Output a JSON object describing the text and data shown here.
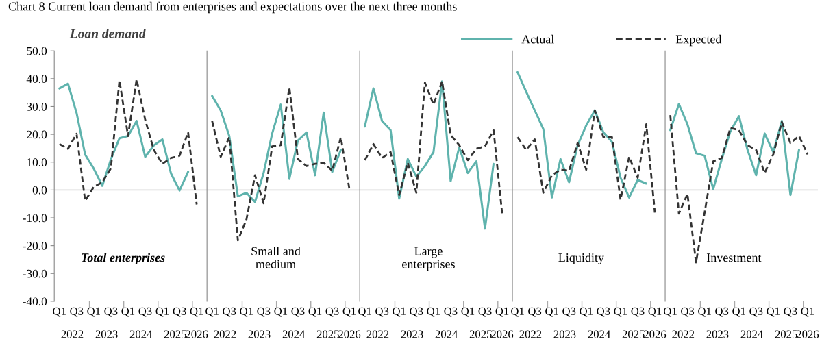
{
  "chart_data": [
    {
      "type": "line",
      "title": "Loan demand",
      "subtitle": "Total enterprises",
      "annotations": [
        "Chart 8 Current loan demand from enterprises and expectations over the next three months",
        "2022",
        "2023",
        "2024",
        "2025",
        "2026"
      ],
      "categories": [
        "Q1",
        null,
        "Q3",
        null,
        "Q1",
        null,
        "Q3",
        null,
        "Q1",
        null,
        "Q3",
        null,
        "Q1",
        null,
        "Q3",
        null,
        "Q1"
      ],
      "series": [
        {
          "name": "Actual",
          "color": "#5fb3ad",
          "line_style": "solid",
          "values": [
            36.5,
            38.2,
            27.7,
            12.7,
            7.7,
            1.5,
            11,
            18.6,
            19.4,
            24.8,
            11.9,
            16,
            18.2,
            6,
            -0.2,
            6.5,
            null
          ]
        },
        {
          "name": "Expected",
          "color": "#333333",
          "line_style": "dashed",
          "values": [
            16.5,
            14.8,
            20.2,
            -3.9,
            1.1,
            2.8,
            7.8,
            39.4,
            19.4,
            39.8,
            25.2,
            14.4,
            9.4,
            11.5,
            12.3,
            20.7,
            -5.2
          ]
        }
      ],
      "ylim": [
        -40,
        50
      ],
      "yticks": [
        {
          "value": -40,
          "label": "-40.0"
        },
        {
          "value": -30,
          "label": "-30.0"
        },
        {
          "value": -20,
          "label": "-20.0"
        },
        {
          "value": -10,
          "label": "-10.0"
        },
        {
          "value": 0,
          "label": "0.0"
        },
        {
          "value": 10,
          "label": "10.0"
        },
        {
          "value": 20,
          "label": "20.0"
        },
        {
          "value": 30,
          "label": "30.0"
        },
        {
          "value": 40,
          "label": "40.0"
        },
        {
          "value": 50,
          "label": "50.0"
        }
      ],
      "ref_lines": [
        {
          "axis": "y",
          "value": 0,
          "color": "#d9d9d9"
        }
      ],
      "legend": "top",
      "grid": false,
      "marker": "none"
    },
    {
      "type": "line",
      "subtitle": "Small and\nmedium",
      "annotations": [
        "2022",
        "2023",
        "2024",
        "2025",
        "2026"
      ],
      "categories": [
        "Q1",
        null,
        "Q3",
        null,
        "Q1",
        null,
        "Q3",
        null,
        "Q1",
        null,
        "Q3",
        null,
        "Q1",
        null,
        "Q3",
        null,
        "Q1"
      ],
      "series": [
        {
          "color": "#5fb3ad",
          "line_style": "solid",
          "values": [
            33.8,
            28.6,
            19.4,
            -2.3,
            -1,
            -4.3,
            6.1,
            20.3,
            30.7,
            4,
            17.8,
            20.7,
            5.3,
            27.8,
            6.5,
            14.4,
            null
          ]
        },
        {
          "color": "#333333",
          "line_style": "dashed",
          "values": [
            24.8,
            11.9,
            19,
            -18.1,
            -10.6,
            5.3,
            -4.8,
            15.7,
            16.1,
            36.9,
            11.1,
            8.6,
            9.4,
            9.8,
            6.9,
            19,
            0.3
          ]
        }
      ],
      "ylim": [
        -40,
        50
      ],
      "tick_labels": "x",
      "ref_lines": [
        {
          "axis": "y",
          "value": 0,
          "color": "#d9d9d9"
        }
      ],
      "grid": false,
      "marker": "none"
    },
    {
      "type": "line",
      "subtitle": "Large\nenterprises",
      "annotations": [
        "2022",
        "2023",
        "2024",
        "2025",
        "2026"
      ],
      "categories": [
        "Q1",
        null,
        "Q3",
        null,
        "Q1",
        null,
        "Q3",
        null,
        "Q1",
        null,
        "Q3",
        null,
        "Q1",
        null,
        "Q3",
        null,
        "Q1"
      ],
      "series": [
        {
          "color": "#5fb3ad",
          "line_style": "solid",
          "values": [
            22.8,
            36.5,
            24.8,
            21.5,
            -3.1,
            11.1,
            4.8,
            8.6,
            13.6,
            39,
            3.2,
            15.3,
            6.1,
            10.3,
            -13.9,
            9.4,
            null
          ]
        },
        {
          "color": "#333333",
          "line_style": "dashed",
          "values": [
            10.7,
            16.5,
            11.5,
            13.6,
            -1.8,
            9.8,
            -1,
            38.6,
            30.7,
            39,
            19.8,
            16.1,
            10.7,
            14.8,
            15.7,
            21.5,
            -8.5
          ]
        }
      ],
      "ylim": [
        -40,
        50
      ],
      "tick_labels": "x",
      "ref_lines": [
        {
          "axis": "y",
          "value": 0,
          "color": "#d9d9d9"
        }
      ],
      "grid": false,
      "marker": "none"
    },
    {
      "type": "line",
      "subtitle": "Liquidity",
      "annotations": [
        "2022",
        "2023",
        "2024",
        "2025",
        "2026"
      ],
      "categories": [
        "Q1",
        null,
        "Q3",
        null,
        "Q1",
        null,
        "Q3",
        null,
        "Q1",
        null,
        "Q3",
        null,
        "Q1",
        null,
        "Q3",
        null,
        "Q1"
      ],
      "series": [
        {
          "color": "#5fb3ad",
          "line_style": "solid",
          "values": [
            42.3,
            35.3,
            28.6,
            21.9,
            -2.7,
            11.1,
            2.8,
            16.1,
            23.2,
            28.6,
            20.7,
            17.3,
            4.4,
            -2.7,
            3.6,
            2.3,
            null
          ]
        },
        {
          "color": "#333333",
          "line_style": "dashed",
          "values": [
            19,
            14.4,
            18.2,
            -1,
            5.3,
            7.3,
            6.9,
            16.9,
            7.3,
            28.6,
            19,
            19,
            -3.5,
            11.9,
            4.4,
            23.6,
            -8.1
          ]
        }
      ],
      "ylim": [
        -40,
        50
      ],
      "tick_labels": "x",
      "ref_lines": [
        {
          "axis": "y",
          "value": 0,
          "color": "#d9d9d9"
        }
      ],
      "grid": false,
      "marker": "none"
    },
    {
      "type": "line",
      "subtitle": "Investment",
      "annotations": [
        "2022",
        "2023",
        "2024",
        "2025",
        "2026"
      ],
      "categories": [
        "Q1",
        null,
        "Q3",
        null,
        "Q1",
        null,
        "Q3",
        null,
        "Q1",
        null,
        "Q3",
        null,
        "Q1",
        null,
        "Q3",
        null,
        "Q1"
      ],
      "series": [
        {
          "color": "#5fb3ad",
          "line_style": "solid",
          "values": [
            21.5,
            30.9,
            23.6,
            13.2,
            12.3,
            0.3,
            11.1,
            21.1,
            26.5,
            14.4,
            5.3,
            20.3,
            13.6,
            24.8,
            -1.8,
            14.4,
            null
          ]
        },
        {
          "color": "#333333",
          "line_style": "dashed",
          "values": [
            26.9,
            -8.5,
            -1.4,
            -26,
            -8.1,
            10.3,
            11.5,
            22.3,
            21.5,
            16.1,
            14.4,
            6.1,
            12.8,
            24.4,
            16.9,
            19.4,
            12.8
          ]
        }
      ],
      "ylim": [
        -40,
        50
      ],
      "tick_labels": "x",
      "ref_lines": [
        {
          "axis": "y",
          "value": 0,
          "color": "#d9d9d9"
        }
      ],
      "grid": false,
      "marker": "none"
    }
  ]
}
